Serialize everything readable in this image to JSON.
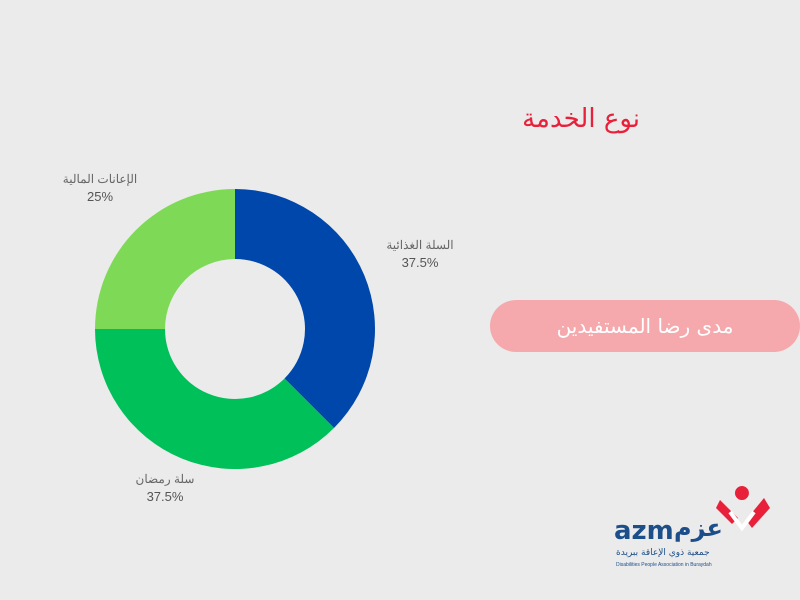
{
  "chart_data": {
    "type": "pie",
    "title": "نوع الخدمة",
    "donut": true,
    "slices": [
      {
        "label": "السلة الغذائية",
        "value": 37.5,
        "value_label": "37.5%",
        "color": "#0047ab"
      },
      {
        "label": "سلة رمضان",
        "value": 37.5,
        "value_label": "37.5%",
        "color": "#00c05a"
      },
      {
        "label": "الإعانات المالية",
        "value": 25,
        "value_label": "25%",
        "color": "#7ed957"
      }
    ]
  },
  "button": {
    "label": "مدى رضا المستفيدين"
  },
  "logo": {
    "brand": "azm",
    "brand_ar": "عزم",
    "sub_ar": "جمعية ذوي الإعاقة ببريدة",
    "sub_en": "Disabilities People Association in Buraydah",
    "colors": {
      "accent": "#e8203a",
      "text": "#1c4f8a"
    }
  }
}
